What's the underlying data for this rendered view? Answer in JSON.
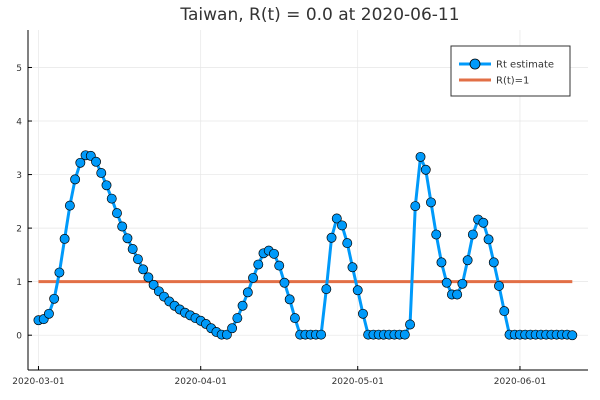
{
  "chart_data": {
    "type": "line",
    "title": "Taiwan, R(t) = 0.0 at 2020-06-11",
    "xlabel": "",
    "ylabel": "",
    "x_range": [
      "2020-02-28",
      "2020-06-14"
    ],
    "ylim": [
      -0.65,
      5.7
    ],
    "x_ticks": [
      {
        "date": "2020-03-01",
        "label": "2020-03-01"
      },
      {
        "date": "2020-04-01",
        "label": "2020-04-01"
      },
      {
        "date": "2020-05-01",
        "label": "2020-05-01"
      },
      {
        "date": "2020-06-01",
        "label": "2020-06-01"
      }
    ],
    "y_ticks": [
      0,
      1,
      2,
      3,
      4,
      5
    ],
    "grid": true,
    "legend_position": "top-right",
    "series": [
      {
        "name": "Rt estimate",
        "color": "#009AFA",
        "marker": "circle",
        "x": [
          "2020-03-01",
          "2020-03-02",
          "2020-03-03",
          "2020-03-04",
          "2020-03-05",
          "2020-03-06",
          "2020-03-07",
          "2020-03-08",
          "2020-03-09",
          "2020-03-10",
          "2020-03-11",
          "2020-03-12",
          "2020-03-13",
          "2020-03-14",
          "2020-03-15",
          "2020-03-16",
          "2020-03-17",
          "2020-03-18",
          "2020-03-19",
          "2020-03-20",
          "2020-03-21",
          "2020-03-22",
          "2020-03-23",
          "2020-03-24",
          "2020-03-25",
          "2020-03-26",
          "2020-03-27",
          "2020-03-28",
          "2020-03-29",
          "2020-03-30",
          "2020-03-31",
          "2020-04-01",
          "2020-04-02",
          "2020-04-03",
          "2020-04-04",
          "2020-04-05",
          "2020-04-06",
          "2020-04-07",
          "2020-04-08",
          "2020-04-09",
          "2020-04-10",
          "2020-04-11",
          "2020-04-12",
          "2020-04-13",
          "2020-04-14",
          "2020-04-15",
          "2020-04-16",
          "2020-04-17",
          "2020-04-18",
          "2020-04-19",
          "2020-04-20",
          "2020-04-21",
          "2020-04-22",
          "2020-04-23",
          "2020-04-24",
          "2020-04-25",
          "2020-04-26",
          "2020-04-27",
          "2020-04-28",
          "2020-04-29",
          "2020-04-30",
          "2020-05-01",
          "2020-05-02",
          "2020-05-03",
          "2020-05-04",
          "2020-05-05",
          "2020-05-06",
          "2020-05-07",
          "2020-05-08",
          "2020-05-09",
          "2020-05-10",
          "2020-05-11",
          "2020-05-12",
          "2020-05-13",
          "2020-05-14",
          "2020-05-15",
          "2020-05-16",
          "2020-05-17",
          "2020-05-18",
          "2020-05-19",
          "2020-05-20",
          "2020-05-21",
          "2020-05-22",
          "2020-05-23",
          "2020-05-24",
          "2020-05-25",
          "2020-05-26",
          "2020-05-27",
          "2020-05-28",
          "2020-05-29",
          "2020-05-30",
          "2020-05-31",
          "2020-06-01",
          "2020-06-02",
          "2020-06-03",
          "2020-06-04",
          "2020-06-05",
          "2020-06-06",
          "2020-06-07",
          "2020-06-08",
          "2020-06-09",
          "2020-06-10",
          "2020-06-11"
        ],
        "y": [
          0.28,
          0.3,
          0.4,
          0.68,
          1.17,
          1.8,
          2.42,
          2.91,
          3.22,
          3.36,
          3.35,
          3.24,
          3.03,
          2.8,
          2.55,
          2.28,
          2.03,
          1.81,
          1.61,
          1.42,
          1.23,
          1.08,
          0.94,
          0.82,
          0.72,
          0.63,
          0.55,
          0.48,
          0.42,
          0.37,
          0.32,
          0.27,
          0.21,
          0.13,
          0.06,
          0.01,
          0.01,
          0.13,
          0.32,
          0.55,
          0.8,
          1.07,
          1.32,
          1.53,
          1.58,
          1.52,
          1.3,
          0.98,
          0.67,
          0.32,
          0.01,
          0.01,
          0.01,
          0.01,
          0.01,
          0.86,
          1.82,
          2.18,
          2.05,
          1.72,
          1.27,
          0.84,
          0.4,
          0.01,
          0.01,
          0.01,
          0.01,
          0.01,
          0.01,
          0.01,
          0.01,
          0.2,
          2.41,
          3.33,
          3.09,
          2.48,
          1.88,
          1.36,
          0.98,
          0.76,
          0.76,
          0.96,
          1.4,
          1.88,
          2.16,
          2.1,
          1.79,
          1.36,
          0.92,
          0.45,
          0.01,
          0.01,
          0.01,
          0.01,
          0.01,
          0.01,
          0.01,
          0.01,
          0.01,
          0.01,
          0.01,
          0.01,
          0.0
        ]
      },
      {
        "name": "R(t)=1",
        "color": "#E26F46",
        "x": [
          "2020-03-01",
          "2020-06-11"
        ],
        "y": [
          1,
          1
        ]
      }
    ]
  }
}
